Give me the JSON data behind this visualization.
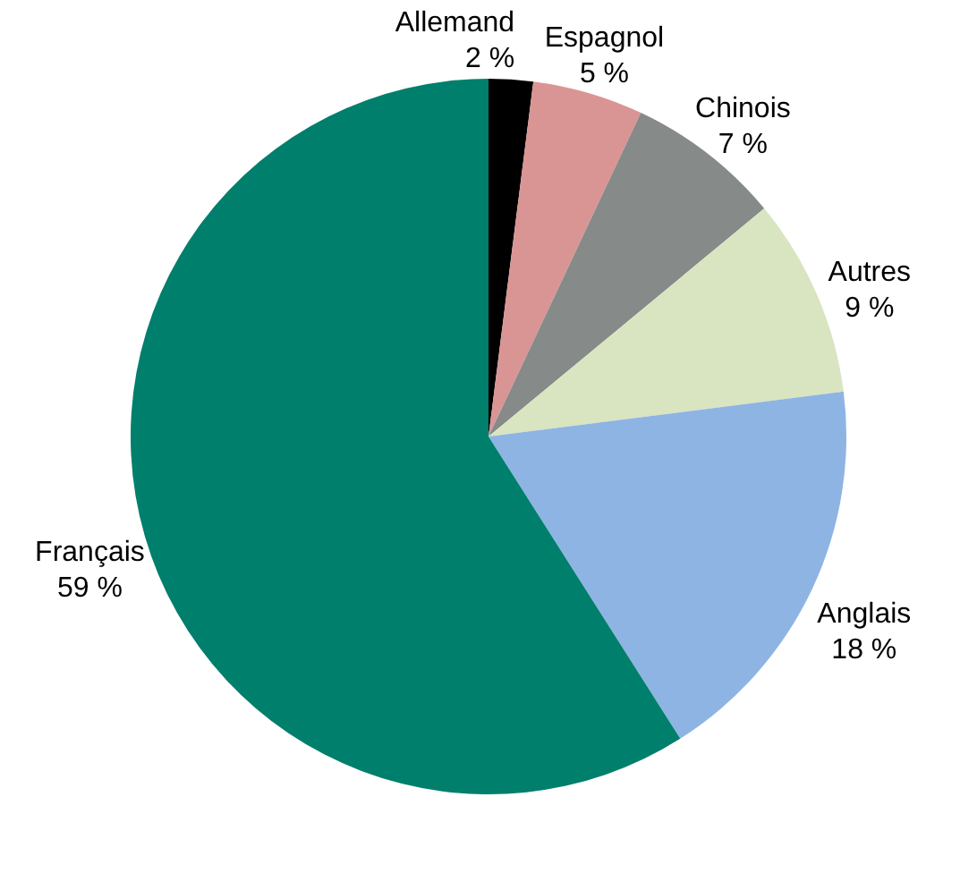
{
  "chart_data": {
    "type": "pie",
    "categories": [
      "Allemand",
      "Espagnol",
      "Chinois",
      "Autres",
      "Anglais",
      "Français"
    ],
    "values": [
      2,
      5,
      7,
      9,
      18,
      59
    ],
    "value_labels": [
      "2 %",
      "5 %",
      "7 %",
      "9 %",
      "18 %",
      "59 %"
    ],
    "colors": [
      "#000000",
      "#d99594",
      "#868a88",
      "#d9e4c1",
      "#8eb4e3",
      "#007f6c"
    ]
  }
}
